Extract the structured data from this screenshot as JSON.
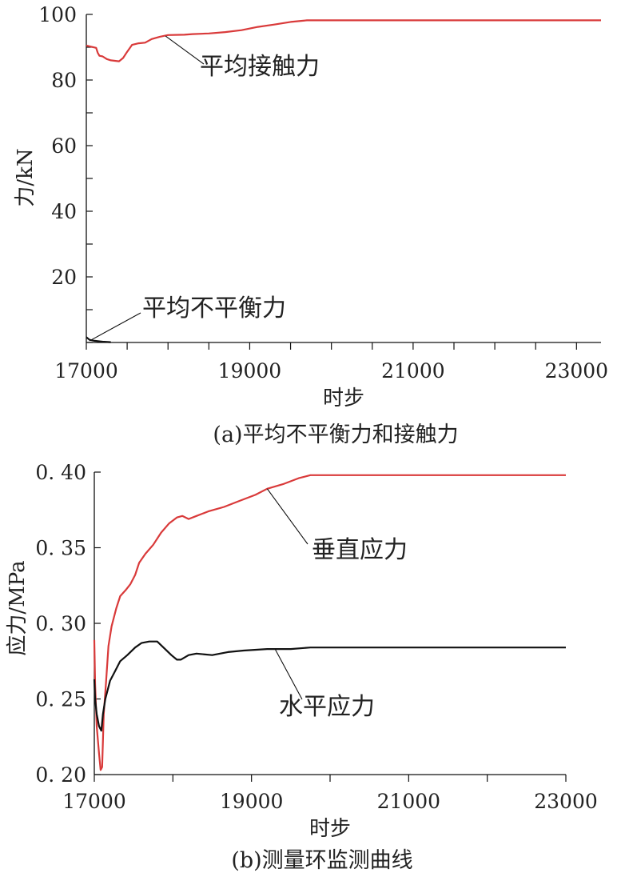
{
  "chart_data": [
    {
      "type": "line",
      "caption": "(a)平均不平衡力和接触力",
      "xlabel": "时步",
      "ylabel": "力/kN",
      "xlim": [
        17000,
        23300
      ],
      "ylim": [
        0,
        100
      ],
      "xticks": [
        17000,
        19000,
        21000,
        23000
      ],
      "xtick_labels": [
        "17000",
        "19000",
        "21000",
        "23000"
      ],
      "x_minor_step": 500,
      "yticks": [
        20,
        40,
        60,
        80,
        100
      ],
      "ytick_labels": [
        "20",
        "40",
        "60",
        "80",
        "100"
      ],
      "y_minor_step": 10,
      "grid": false,
      "series": [
        {
          "name": "平均接触力",
          "color": "#d93a3a",
          "points": [
            [
              17000,
              90.5
            ],
            [
              17120,
              89.8
            ],
            [
              17140,
              88.3
            ],
            [
              17160,
              87.4
            ],
            [
              17200,
              87.2
            ],
            [
              17250,
              86.4
            ],
            [
              17300,
              86.0
            ],
            [
              17400,
              85.7
            ],
            [
              17450,
              86.7
            ],
            [
              17500,
              88.6
            ],
            [
              17560,
              90.7
            ],
            [
              17640,
              91.2
            ],
            [
              17720,
              91.4
            ],
            [
              17800,
              92.5
            ],
            [
              17900,
              93.2
            ],
            [
              18000,
              93.7
            ],
            [
              18200,
              93.8
            ],
            [
              18300,
              94.0
            ],
            [
              18500,
              94.2
            ],
            [
              18700,
              94.6
            ],
            [
              18900,
              95.2
            ],
            [
              19100,
              96.2
            ],
            [
              19300,
              96.9
            ],
            [
              19500,
              97.7
            ],
            [
              19700,
              98.2
            ],
            [
              23300,
              98.2
            ]
          ]
        },
        {
          "name": "平均不平衡力",
          "color": "#111111",
          "points": [
            [
              17000,
              1.6
            ],
            [
              17040,
              0.8
            ],
            [
              17100,
              0.5
            ],
            [
              17200,
              0.25
            ],
            [
              17300,
              0.1
            ]
          ]
        }
      ],
      "annotations": [
        {
          "text": "平均接触力",
          "target": [
            17970,
            93.4
          ]
        },
        {
          "text": "平均不平衡力",
          "target": [
            17040,
            0.5
          ]
        }
      ]
    },
    {
      "type": "line",
      "caption": "(b)测量环监测曲线",
      "xlabel": "时步",
      "ylabel": "应力/MPa",
      "xlim": [
        17000,
        23000
      ],
      "ylim": [
        0.2,
        0.4
      ],
      "xticks": [
        17000,
        19000,
        21000,
        23000
      ],
      "xtick_labels": [
        "17000",
        "19000",
        "21000",
        "23000"
      ],
      "x_minor_step": 1000,
      "yticks": [
        0.2,
        0.25,
        0.3,
        0.35,
        0.4
      ],
      "ytick_labels": [
        "0. 20",
        "0. 25",
        "0. 30",
        "0. 35",
        "0. 40"
      ],
      "grid": false,
      "series": [
        {
          "name": "垂直应力",
          "color": "#d93a3a",
          "points": [
            [
              17000,
              0.289
            ],
            [
              17010,
              0.26
            ],
            [
              17030,
              0.232
            ],
            [
              17060,
              0.214
            ],
            [
              17080,
              0.203
            ],
            [
              17100,
              0.205
            ],
            [
              17120,
              0.24
            ],
            [
              17150,
              0.262
            ],
            [
              17180,
              0.285
            ],
            [
              17220,
              0.298
            ],
            [
              17280,
              0.31
            ],
            [
              17330,
              0.318
            ],
            [
              17400,
              0.322
            ],
            [
              17460,
              0.326
            ],
            [
              17520,
              0.332
            ],
            [
              17570,
              0.34
            ],
            [
              17650,
              0.346
            ],
            [
              17750,
              0.352
            ],
            [
              17850,
              0.36
            ],
            [
              17950,
              0.366
            ],
            [
              18050,
              0.37
            ],
            [
              18120,
              0.371
            ],
            [
              18200,
              0.369
            ],
            [
              18300,
              0.371
            ],
            [
              18450,
              0.374
            ],
            [
              18650,
              0.377
            ],
            [
              18850,
              0.381
            ],
            [
              19050,
              0.385
            ],
            [
              19200,
              0.389
            ],
            [
              19400,
              0.392
            ],
            [
              19600,
              0.396
            ],
            [
              19750,
              0.398
            ],
            [
              23000,
              0.398
            ]
          ]
        },
        {
          "name": "水平应力",
          "color": "#111111",
          "points": [
            [
              17000,
              0.263
            ],
            [
              17010,
              0.25
            ],
            [
              17030,
              0.24
            ],
            [
              17060,
              0.232
            ],
            [
              17090,
              0.229
            ],
            [
              17110,
              0.24
            ],
            [
              17140,
              0.25
            ],
            [
              17200,
              0.262
            ],
            [
              17260,
              0.268
            ],
            [
              17330,
              0.275
            ],
            [
              17420,
              0.279
            ],
            [
              17520,
              0.284
            ],
            [
              17600,
              0.287
            ],
            [
              17700,
              0.288
            ],
            [
              17800,
              0.288
            ],
            [
              17900,
              0.283
            ],
            [
              17980,
              0.279
            ],
            [
              18050,
              0.276
            ],
            [
              18100,
              0.276
            ],
            [
              18200,
              0.279
            ],
            [
              18300,
              0.28
            ],
            [
              18500,
              0.279
            ],
            [
              18700,
              0.281
            ],
            [
              18900,
              0.282
            ],
            [
              19200,
              0.283
            ],
            [
              19500,
              0.283
            ],
            [
              19750,
              0.284
            ],
            [
              23000,
              0.284
            ]
          ]
        }
      ],
      "annotations": [
        {
          "text": "垂直应力",
          "target": [
            19200,
            0.389
          ]
        },
        {
          "text": "水平应力",
          "target": [
            19300,
            0.283
          ]
        }
      ]
    }
  ]
}
